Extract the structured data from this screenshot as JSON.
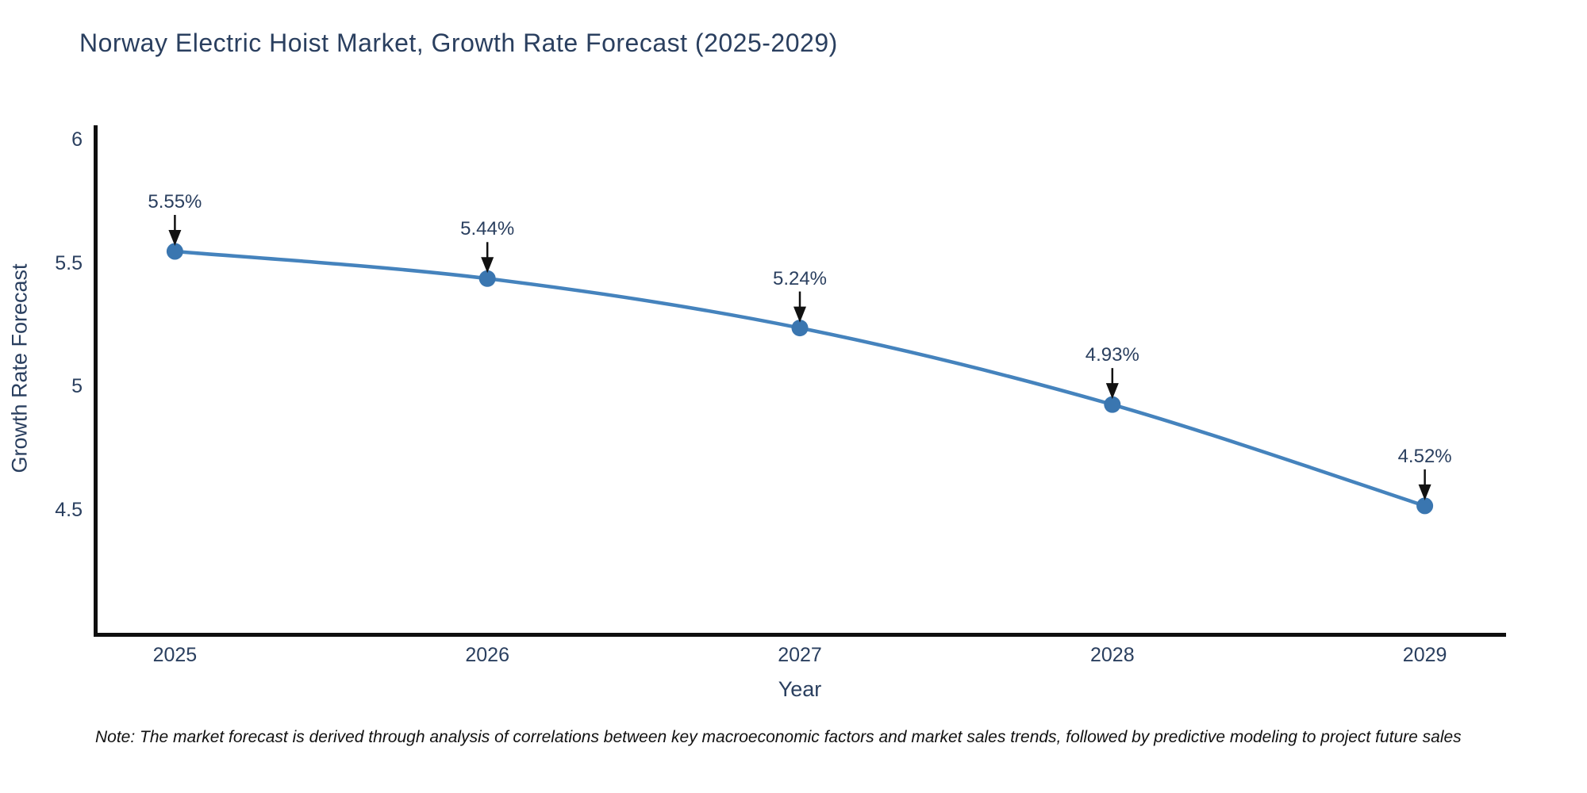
{
  "title": "Norway Electric Hoist Market, Growth Rate Forecast (2025-2029)",
  "footnote": "Note: The market forecast is derived through analysis of correlations between key macroeconomic factors and market sales trends, followed by predictive modeling to project future sales",
  "colors": {
    "font": "#2a3f5f",
    "line": "#4583bd",
    "marker": "#3a76b0",
    "axis": "#0f0f0f",
    "arrow": "#111111",
    "background": "#ffffff"
  },
  "chart_data": {
    "type": "line",
    "title": "Norway Electric Hoist Market, Growth Rate Forecast (2025-2029)",
    "xlabel": "Year",
    "ylabel": "Growth Rate Forecast",
    "x": [
      2025,
      2026,
      2027,
      2028,
      2029
    ],
    "x_tick_labels": [
      "2025",
      "2026",
      "2027",
      "2028",
      "2029"
    ],
    "y": [
      5.55,
      5.44,
      5.24,
      4.93,
      4.52
    ],
    "point_labels": [
      "5.55%",
      "5.44%",
      "5.24%",
      "4.93%",
      "4.52%"
    ],
    "y_ticks": [
      4.5,
      5,
      5.5,
      6
    ],
    "y_tick_labels": [
      "4.5",
      "5",
      "5.5",
      "6"
    ],
    "ylim": [
      3.99,
      6.07
    ],
    "xlim": [
      2024.74,
      2029.26
    ],
    "grid": false,
    "legend_position": "none",
    "line_shape": "spline",
    "annotation_style": "value label with downward arrow above each data point"
  }
}
